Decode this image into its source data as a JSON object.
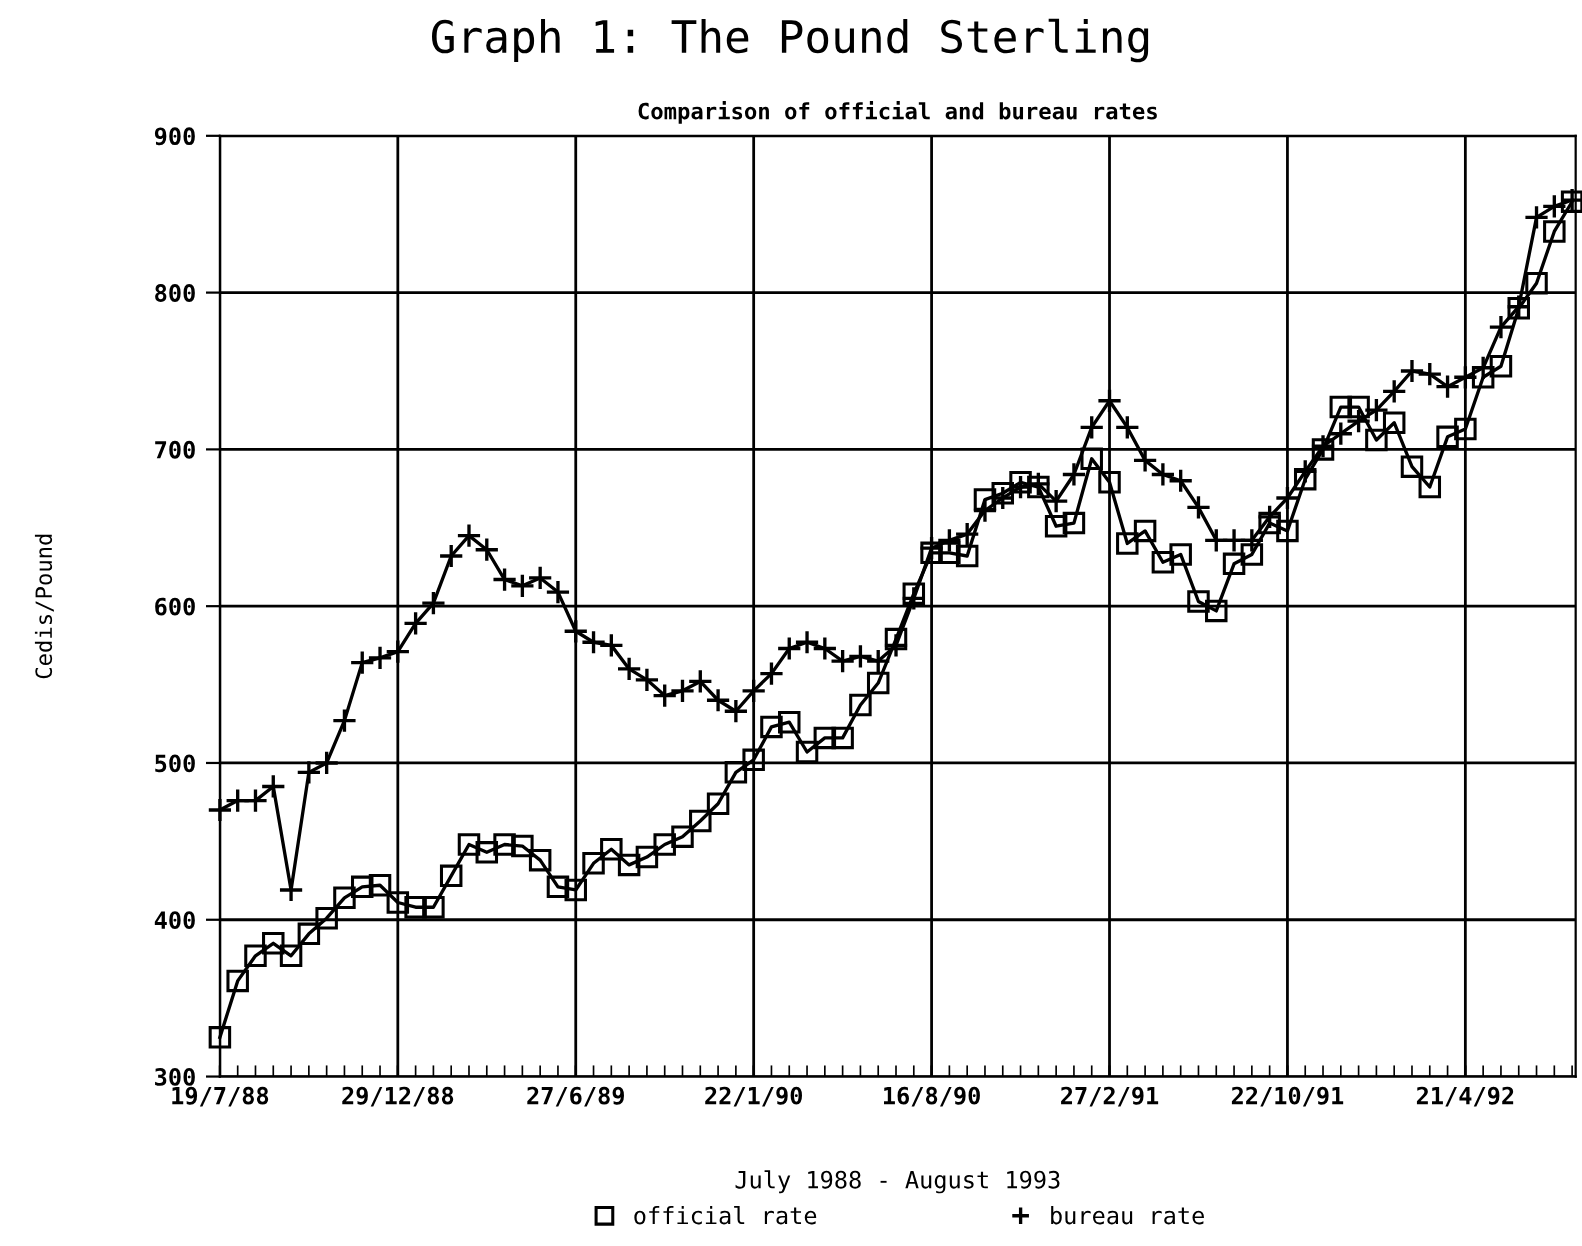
{
  "chart_data": {
    "type": "line",
    "title": "Graph 1: The Pound Sterling",
    "subtitle": "Comparison of official and bureau rates",
    "xlabel": "July 1988 - August 1993",
    "ylabel": "Cedis/Pound",
    "categories": [
      "19/7/88",
      null,
      null,
      null,
      null,
      null,
      null,
      null,
      null,
      null,
      "29/12/88",
      null,
      null,
      null,
      null,
      null,
      null,
      null,
      null,
      null,
      "27/6/89",
      null,
      null,
      null,
      null,
      null,
      null,
      null,
      null,
      null,
      "22/1/90",
      null,
      null,
      null,
      null,
      null,
      null,
      null,
      null,
      null,
      "16/8/90",
      null,
      null,
      null,
      null,
      null,
      null,
      null,
      null,
      null,
      "27/2/91",
      null,
      null,
      null,
      null,
      null,
      null,
      null,
      null,
      null,
      "22/10/91",
      null,
      null,
      null,
      null,
      null,
      null,
      null,
      null,
      null,
      "21/4/92",
      null,
      null,
      null,
      null,
      null,
      null
    ],
    "series": [
      {
        "name": "official rate",
        "color": "#000000",
        "marker": "square",
        "values": [
          325,
          361,
          377,
          385,
          377,
          391,
          401,
          414,
          421,
          422,
          411,
          408,
          408,
          428,
          448,
          443,
          448,
          447,
          438,
          421,
          419,
          436,
          445,
          435,
          440,
          448,
          453,
          463,
          474,
          494,
          502,
          523,
          526,
          507,
          516,
          516,
          537,
          551,
          579,
          608,
          634,
          634,
          632,
          668,
          672,
          679,
          676,
          651,
          653,
          694,
          679,
          640,
          648,
          628,
          633,
          603,
          597,
          627,
          633,
          653,
          648,
          681,
          700,
          727,
          727,
          706,
          717,
          689,
          676,
          708,
          713,
          746,
          753,
          790,
          806,
          839,
          858
        ]
      },
      {
        "name": "bureau rate",
        "color": "#000000",
        "marker": "cross",
        "values": [
          470,
          476,
          476,
          485,
          419,
          494,
          500,
          527,
          564,
          567,
          571,
          589,
          602,
          632,
          645,
          636,
          617,
          613,
          618,
          609,
          584,
          577,
          575,
          560,
          553,
          543,
          546,
          552,
          540,
          533,
          546,
          557,
          573,
          577,
          573,
          565,
          568,
          565,
          575,
          605,
          637,
          642,
          646,
          661,
          669,
          676,
          678,
          667,
          684,
          714,
          731,
          714,
          693,
          684,
          680,
          663,
          642,
          642,
          642,
          657,
          669,
          686,
          702,
          710,
          718,
          725,
          737,
          750,
          748,
          740,
          746,
          752,
          778,
          791,
          848,
          855,
          859
        ]
      }
    ],
    "ylim": [
      300,
      900
    ],
    "yticks": [
      300,
      400,
      500,
      600,
      700,
      800,
      900
    ],
    "grid": true,
    "legend": "bottom",
    "line_style": "solid"
  }
}
